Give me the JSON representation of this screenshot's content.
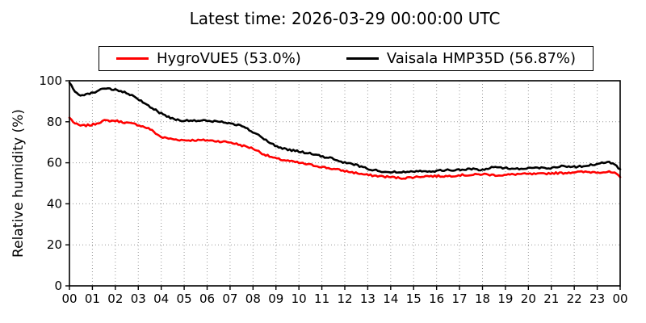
{
  "title": "Latest time: 2026-03-29 00:00:00 UTC",
  "chart_data": {
    "type": "line",
    "title": "Latest time: 2026-03-29 00:00:00 UTC",
    "xlabel": "",
    "ylabel": "Relative humidity (%)",
    "xlim": [
      0,
      24
    ],
    "ylim": [
      0,
      100
    ],
    "grid": true,
    "grid_style": "dotted",
    "legend_position": "top-center",
    "x_tick_hours": [
      0,
      1,
      2,
      3,
      4,
      5,
      6,
      7,
      8,
      9,
      10,
      11,
      12,
      13,
      14,
      15,
      16,
      17,
      18,
      19,
      20,
      21,
      22,
      23,
      24
    ],
    "x_tick_labels": [
      "00",
      "01",
      "02",
      "03",
      "04",
      "05",
      "06",
      "07",
      "08",
      "09",
      "10",
      "11",
      "12",
      "13",
      "14",
      "15",
      "16",
      "17",
      "18",
      "19",
      "20",
      "21",
      "22",
      "23",
      "00"
    ],
    "y_ticks": [
      0,
      20,
      40,
      60,
      80,
      100
    ],
    "y_tick_labels": [
      "0",
      "20",
      "40",
      "60",
      "80",
      "100"
    ],
    "frame_color": "#000000",
    "grid_color": "#999999",
    "series": [
      {
        "name": "HygroVUE5 (53.0%)",
        "sensor": "HygroVUE5",
        "latest_value_pct": 53.0,
        "color": "#ff0000",
        "x": [
          0,
          0.25,
          0.5,
          1,
          1.5,
          2,
          2.5,
          3,
          3.5,
          4,
          4.5,
          5,
          5.5,
          6,
          6.5,
          7,
          7.5,
          8,
          8.5,
          9,
          9.5,
          10,
          10.5,
          11,
          11.5,
          12,
          12.5,
          13,
          13.5,
          14,
          14.5,
          15,
          15.5,
          16,
          16.5,
          17,
          17.5,
          18,
          18.5,
          19,
          19.5,
          20,
          20.5,
          21,
          21.5,
          22,
          22.5,
          23,
          23.5,
          23.75,
          24
        ],
        "values": [
          82,
          79,
          78,
          78.5,
          80.5,
          80.5,
          79.5,
          78.5,
          76.5,
          72.5,
          71.5,
          71,
          71,
          71,
          70.5,
          70,
          68.5,
          67,
          64,
          62,
          61,
          60,
          59,
          58,
          57,
          56,
          55,
          54,
          53.5,
          53,
          52.5,
          53,
          53.5,
          53.5,
          53.5,
          54,
          54,
          54.5,
          54,
          54,
          54.5,
          54.5,
          54.5,
          55,
          55,
          55.5,
          55.5,
          55.5,
          55.5,
          55,
          53
        ]
      },
      {
        "name": "Vaisala HMP35D (56.87%)",
        "sensor": "Vaisala HMP35D",
        "latest_value_pct": 56.87,
        "color": "#000000",
        "x": [
          0,
          0.25,
          0.5,
          1,
          1.5,
          2,
          2.5,
          3,
          3.5,
          4,
          4.5,
          5,
          5.5,
          6,
          6.5,
          7,
          7.5,
          8,
          8.5,
          9,
          9.5,
          10,
          10.5,
          11,
          11.5,
          12,
          12.5,
          13,
          13.5,
          14,
          14.5,
          15,
          15.5,
          16,
          16.5,
          17,
          17.5,
          18,
          18.5,
          19,
          19.5,
          20,
          20.5,
          21,
          21.5,
          22,
          22.5,
          23,
          23.5,
          23.75,
          24
        ],
        "values": [
          99,
          94.5,
          93,
          94,
          96.5,
          95.5,
          94,
          91,
          87.5,
          84,
          81.5,
          80.5,
          80.5,
          80.5,
          80,
          79.5,
          78,
          75,
          71.5,
          68,
          66.5,
          65.5,
          64.5,
          63,
          62,
          60,
          59,
          57,
          56,
          55.5,
          55.5,
          56,
          56,
          56,
          56.5,
          56.5,
          57,
          56.5,
          58,
          57.5,
          57,
          57.5,
          57.5,
          57.5,
          58.5,
          58,
          58.5,
          59.5,
          60.5,
          59,
          56.87
        ]
      }
    ]
  }
}
